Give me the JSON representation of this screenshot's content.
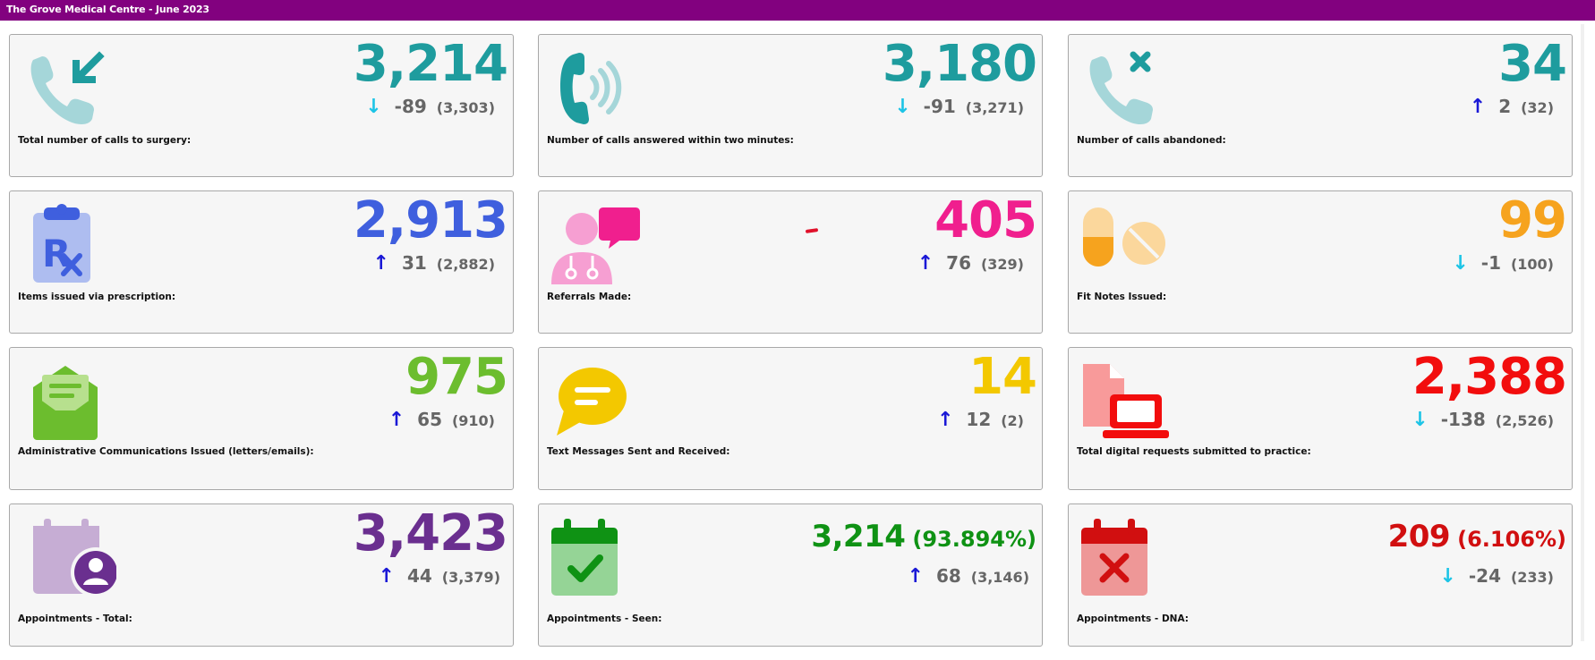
{
  "header": {
    "title": "The Grove Medical Centre - June 2023"
  },
  "colors": {
    "header_bg": "#82017f",
    "up_arrow": "#1a18d6",
    "down_arrow": "#1cc4e6",
    "change_text": "#666666"
  },
  "cards": [
    {
      "icon": "incoming-call-icon",
      "value": "3,214",
      "value_color": "#1e9c9e",
      "direction": "down",
      "arrow": "↓",
      "change": "-89",
      "previous": "(3,303)",
      "label": "Total number of calls to surgery:"
    },
    {
      "icon": "phone-ringing-icon",
      "value": "3,180",
      "value_color": "#1e9c9e",
      "direction": "down",
      "arrow": "↓",
      "change": "-91",
      "previous": "(3,271)",
      "label": "Number of calls answered within two minutes:"
    },
    {
      "icon": "call-abandoned-icon",
      "value": "34",
      "value_color": "#1e9c9e",
      "direction": "up",
      "arrow": "↑",
      "change": "2",
      "previous": "(32)",
      "label": "Number of calls abandoned:"
    },
    {
      "icon": "prescription-icon",
      "value": "2,913",
      "value_color": "#3f5fde",
      "direction": "up",
      "arrow": "↑",
      "change": "31",
      "previous": "(2,882)",
      "label": "Items issued via prescription:"
    },
    {
      "icon": "doctor-referral-icon",
      "value": "405",
      "value_color": "#f01f8e",
      "direction": "up",
      "arrow": "↑",
      "change": "76",
      "previous": "(329)",
      "label": "Referrals Made:"
    },
    {
      "icon": "pills-icon",
      "value": "99",
      "value_color": "#f6a31e",
      "direction": "down",
      "arrow": "↓",
      "change": "-1",
      "previous": "(100)",
      "label": "Fit Notes Issued:"
    },
    {
      "icon": "open-envelope-icon",
      "value": "975",
      "value_color": "#6cbd2e",
      "direction": "up",
      "arrow": "↑",
      "change": "65",
      "previous": "(910)",
      "label": "Administrative Communications Issued (letters/emails):"
    },
    {
      "icon": "speech-bubble-icon",
      "value": "14",
      "value_color": "#f3c800",
      "direction": "up",
      "arrow": "↑",
      "change": "12",
      "previous": "(2)",
      "label": "Text Messages Sent and Received:"
    },
    {
      "icon": "digital-request-icon",
      "value": "2,388",
      "value_color": "#f20d0d",
      "direction": "down",
      "arrow": "↓",
      "change": "-138",
      "previous": "(2,526)",
      "label": "Total digital requests submitted to practice:"
    },
    {
      "icon": "calendar-user-icon",
      "value": "3,423",
      "value_color": "#6a2f8f",
      "direction": "up",
      "arrow": "↑",
      "change": "44",
      "previous": "(3,379)",
      "label": "Appointments - Total:"
    },
    {
      "icon": "calendar-check-icon",
      "value": "3,214",
      "pct": "(93.894%)",
      "value_color": "#0f9214",
      "direction": "up",
      "arrow": "↑",
      "change": "68",
      "previous": "(3,146)",
      "label": "Appointments - Seen:"
    },
    {
      "icon": "calendar-cross-icon",
      "value": "209",
      "pct": "(6.106%)",
      "value_color": "#d10f10",
      "direction": "down",
      "arrow": "↓",
      "change": "-24",
      "previous": "(233)",
      "label": "Appointments - DNA:"
    }
  ]
}
